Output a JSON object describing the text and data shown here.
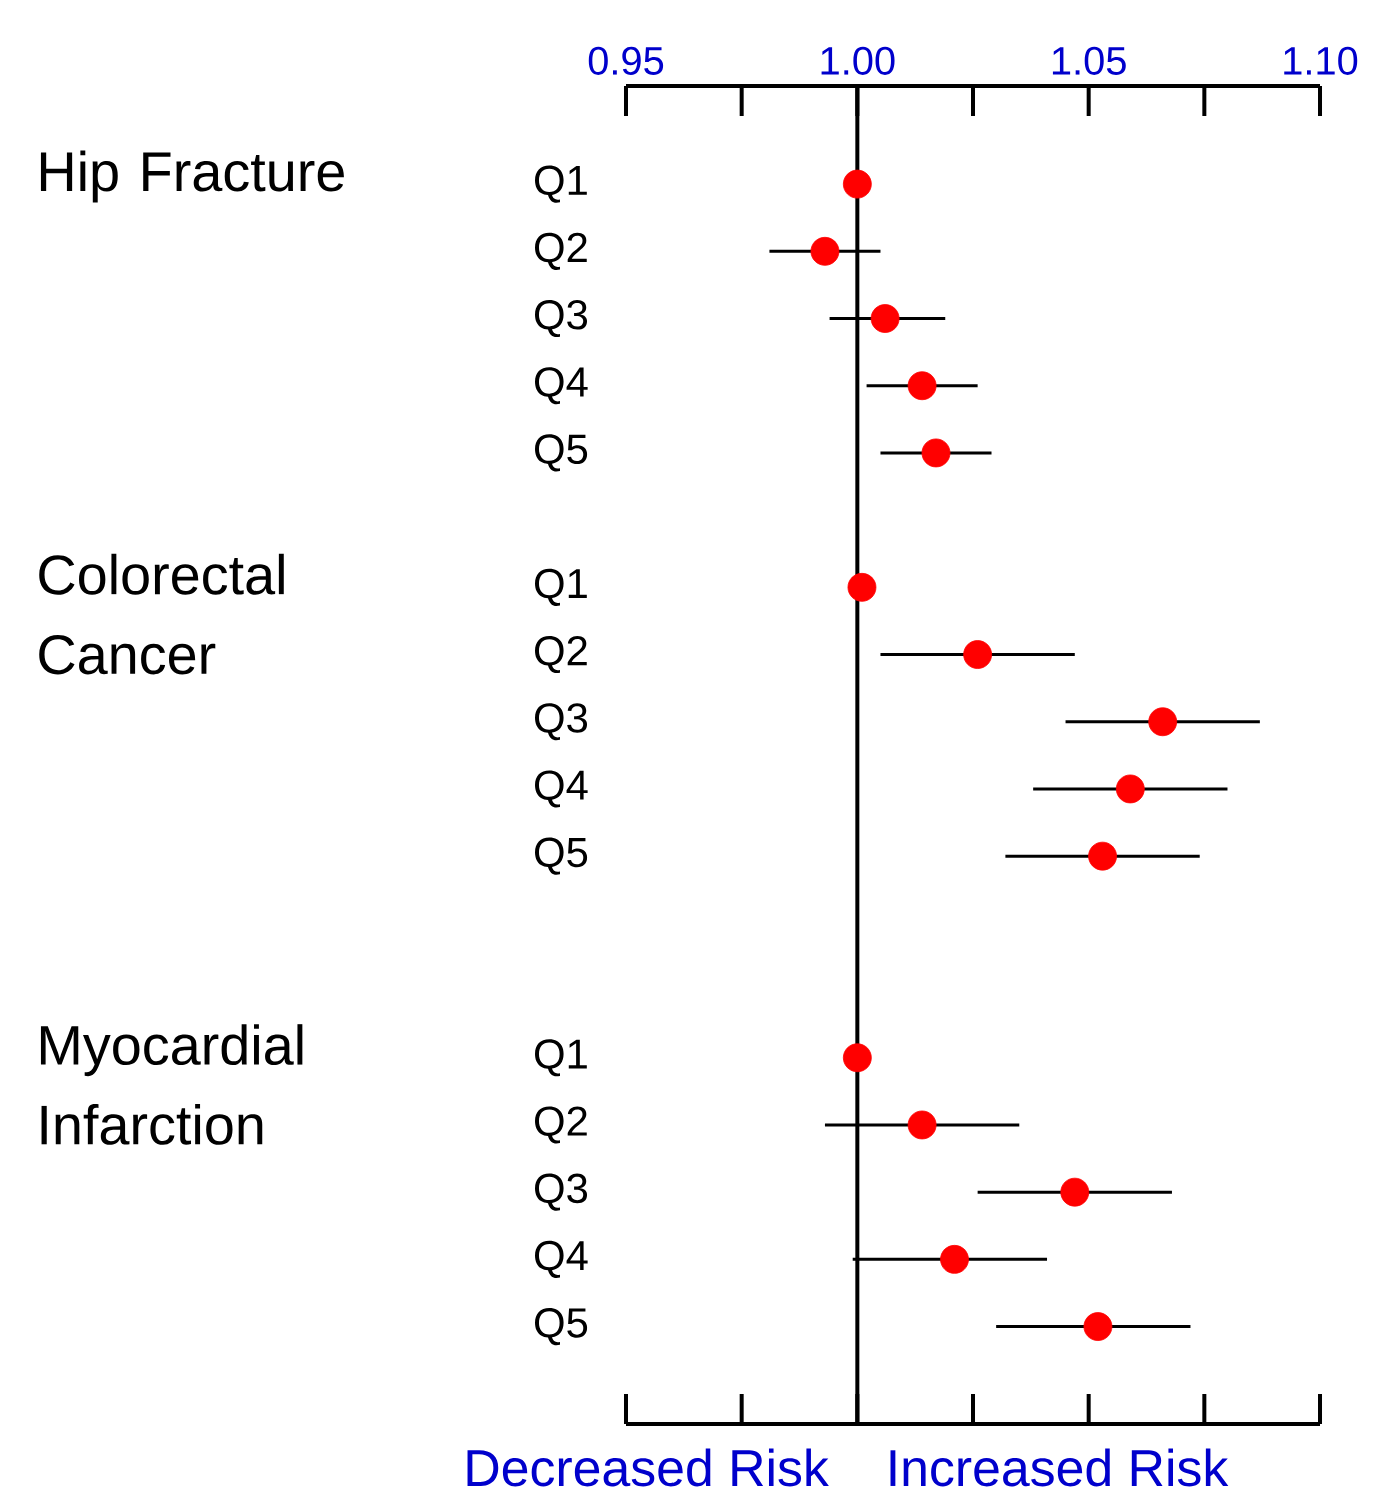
{
  "chart_data": {
    "type": "scatter",
    "orientation": "horizontal",
    "marker": "circle",
    "categories": [
      "Q1",
      "Q2",
      "Q3",
      "Q4",
      "Q5",
      null,
      "Q1",
      "Q2",
      "Q3",
      "Q4",
      "Q5",
      null,
      null,
      "Q1",
      "Q2",
      "Q3",
      "Q4",
      "Q5"
    ],
    "series": [
      {
        "color": "#ff0000",
        "values": [
          1.0,
          0.993,
          1.006,
          1.014,
          1.017,
          null,
          1.001,
          1.026,
          1.066,
          1.059,
          1.053,
          null,
          null,
          1.0,
          1.014,
          1.047,
          1.021,
          1.052
        ],
        "errors": [
          null,
          [
            0.981,
            1.005
          ],
          [
            0.994,
            1.019
          ],
          [
            1.002,
            1.026
          ],
          [
            1.005,
            1.029
          ],
          null,
          null,
          [
            1.005,
            1.047
          ],
          [
            1.045,
            1.087
          ],
          [
            1.038,
            1.08
          ],
          [
            1.032,
            1.074
          ],
          null,
          null,
          null,
          [
            0.993,
            1.035
          ],
          [
            1.026,
            1.068
          ],
          [
            0.999,
            1.041
          ],
          [
            1.03,
            1.072
          ]
        ]
      }
    ],
    "xlim": [
      0.95,
      1.1
    ],
    "xticks": [
      0.95,
      {
        "value": 0.975,
        "label": null
      },
      {
        "value": 1.0,
        "label": "1.00"
      },
      {
        "value": 1.025,
        "label": null
      },
      1.05,
      {
        "value": 1.075,
        "label": null
      },
      {
        "value": 1.1,
        "label": "1.10"
      }
    ],
    "ref_lines": [
      {
        "axis": "x",
        "value": 1.0,
        "color": "#000000"
      }
    ],
    "annotations": [
      "Hip Fracture",
      "Colorectal Cancer",
      "Myocardial Infarction",
      "Decreased Risk",
      "Increased Risk"
    ]
  }
}
